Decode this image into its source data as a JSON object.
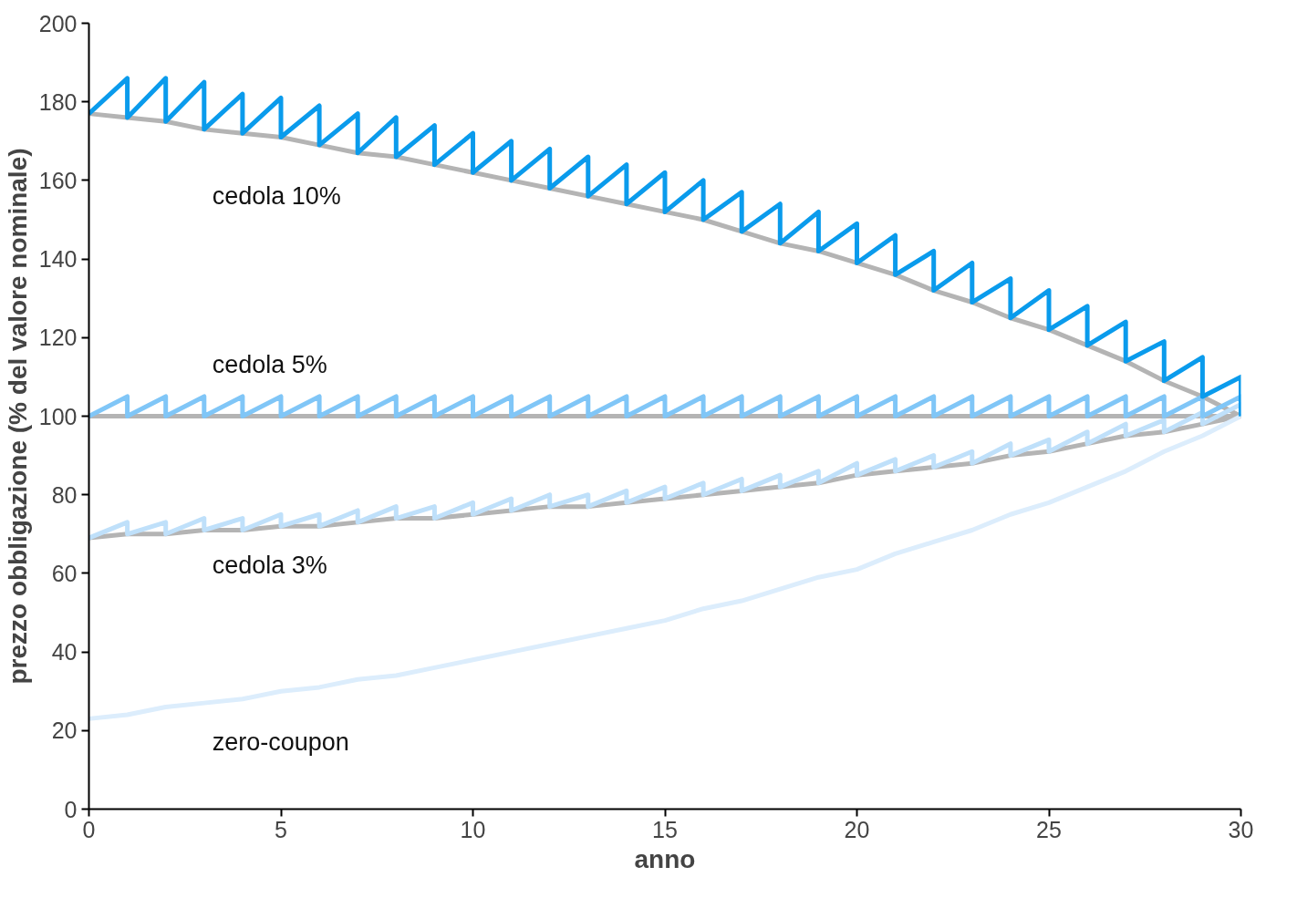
{
  "chart_data": {
    "type": "line",
    "xlabel": "anno",
    "ylabel": "prezzo obbligazione (% del valore nominale)",
    "xlim": [
      0,
      30
    ],
    "ylim": [
      0,
      200
    ],
    "xticks": [
      0,
      5,
      10,
      15,
      20,
      25,
      30
    ],
    "yticks": [
      0,
      20,
      40,
      60,
      80,
      100,
      120,
      140,
      160,
      180,
      200
    ],
    "grid": false,
    "marker": "none",
    "line_style": "solid",
    "series": [
      {
        "color": "#b4b4b4",
        "x": [
          0,
          1,
          2,
          3,
          4,
          5,
          6,
          7,
          8,
          9,
          10,
          11,
          12,
          13,
          14,
          15,
          16,
          17,
          18,
          19,
          20,
          21,
          22,
          23,
          24,
          25,
          26,
          27,
          28,
          29,
          30
        ],
        "values": [
          177,
          176,
          175,
          173,
          172,
          171,
          169,
          167,
          166,
          164,
          162,
          160,
          158,
          156,
          154,
          152,
          150,
          147,
          144,
          142,
          139,
          136,
          132,
          129,
          125,
          122,
          118,
          114,
          109,
          105,
          100
        ]
      },
      {
        "color": "#b4b4b4",
        "x": [
          0,
          30
        ],
        "values": [
          100,
          100
        ]
      },
      {
        "color": "#b4b4b4",
        "x": [
          0,
          1,
          2,
          3,
          4,
          5,
          6,
          7,
          8,
          9,
          10,
          11,
          12,
          13,
          14,
          15,
          16,
          17,
          18,
          19,
          20,
          21,
          22,
          23,
          24,
          25,
          26,
          27,
          28,
          29,
          30
        ],
        "values": [
          69,
          70,
          70,
          71,
          71,
          72,
          72,
          73,
          74,
          74,
          75,
          76,
          77,
          77,
          78,
          79,
          80,
          81,
          82,
          83,
          85,
          86,
          87,
          88,
          90,
          91,
          93,
          95,
          96,
          98,
          100
        ]
      },
      {
        "color": "#dcedfc",
        "x": [
          0,
          1,
          2,
          3,
          4,
          5,
          6,
          7,
          8,
          9,
          10,
          11,
          12,
          13,
          14,
          15,
          16,
          17,
          18,
          19,
          20,
          21,
          22,
          23,
          24,
          25,
          26,
          27,
          28,
          29,
          30
        ],
        "values": [
          23,
          24,
          26,
          27,
          28,
          30,
          31,
          33,
          34,
          36,
          38,
          40,
          42,
          44,
          46,
          48,
          51,
          53,
          56,
          59,
          61,
          65,
          68,
          71,
          75,
          78,
          82,
          86,
          91,
          95,
          100
        ]
      },
      {
        "color": "#bfe0fa",
        "x": [
          0,
          1,
          1,
          2,
          2,
          3,
          3,
          4,
          4,
          5,
          5,
          6,
          6,
          7,
          7,
          8,
          8,
          9,
          9,
          10,
          10,
          11,
          11,
          12,
          12,
          13,
          13,
          14,
          14,
          15,
          15,
          16,
          16,
          17,
          17,
          18,
          18,
          19,
          19,
          20,
          20,
          21,
          21,
          22,
          22,
          23,
          23,
          24,
          24,
          25,
          25,
          26,
          26,
          27,
          27,
          28,
          28,
          29,
          29,
          30,
          30
        ],
        "values": [
          69,
          73,
          70,
          73,
          70,
          74,
          71,
          74,
          71,
          75,
          72,
          75,
          72,
          76,
          73,
          77,
          74,
          77,
          74,
          78,
          75,
          79,
          76,
          80,
          77,
          80,
          77,
          81,
          78,
          82,
          79,
          83,
          80,
          84,
          81,
          85,
          82,
          86,
          83,
          88,
          85,
          89,
          86,
          90,
          87,
          91,
          88,
          93,
          90,
          94,
          91,
          96,
          93,
          98,
          95,
          99,
          96,
          101,
          98,
          103,
          100
        ]
      },
      {
        "color": "#80c6f7",
        "x": [
          0,
          1,
          1,
          2,
          2,
          3,
          3,
          4,
          4,
          5,
          5,
          6,
          6,
          7,
          7,
          8,
          8,
          9,
          9,
          10,
          10,
          11,
          11,
          12,
          12,
          13,
          13,
          14,
          14,
          15,
          15,
          16,
          16,
          17,
          17,
          18,
          18,
          19,
          19,
          20,
          20,
          21,
          21,
          22,
          22,
          23,
          23,
          24,
          24,
          25,
          25,
          26,
          26,
          27,
          27,
          28,
          28,
          29,
          29,
          30,
          30
        ],
        "values": [
          100,
          105,
          100,
          105,
          100,
          105,
          100,
          105,
          100,
          105,
          100,
          105,
          100,
          105,
          100,
          105,
          100,
          105,
          100,
          105,
          100,
          105,
          100,
          105,
          100,
          105,
          100,
          105,
          100,
          105,
          100,
          105,
          100,
          105,
          100,
          105,
          100,
          105,
          100,
          105,
          100,
          105,
          100,
          105,
          100,
          105,
          100,
          105,
          100,
          105,
          100,
          105,
          100,
          105,
          100,
          105,
          100,
          105,
          100,
          105,
          100
        ]
      },
      {
        "color": "#0a9bec",
        "x": [
          0,
          1,
          1,
          2,
          2,
          3,
          3,
          4,
          4,
          5,
          5,
          6,
          6,
          7,
          7,
          8,
          8,
          9,
          9,
          10,
          10,
          11,
          11,
          12,
          12,
          13,
          13,
          14,
          14,
          15,
          15,
          16,
          16,
          17,
          17,
          18,
          18,
          19,
          19,
          20,
          20,
          21,
          21,
          22,
          22,
          23,
          23,
          24,
          24,
          25,
          25,
          26,
          26,
          27,
          27,
          28,
          28,
          29,
          29,
          30,
          30
        ],
        "values": [
          177,
          186,
          176,
          186,
          175,
          185,
          173,
          182,
          172,
          181,
          171,
          179,
          169,
          177,
          167,
          176,
          166,
          174,
          164,
          172,
          162,
          170,
          160,
          168,
          158,
          166,
          156,
          164,
          154,
          162,
          152,
          160,
          150,
          157,
          147,
          154,
          144,
          152,
          142,
          149,
          139,
          146,
          136,
          142,
          132,
          139,
          129,
          135,
          125,
          132,
          122,
          128,
          118,
          124,
          114,
          119,
          109,
          115,
          105,
          110,
          100
        ]
      }
    ],
    "annotations": [
      "cedola 10%",
      "cedola 5%",
      "cedola 3%",
      "zero-coupon"
    ]
  }
}
